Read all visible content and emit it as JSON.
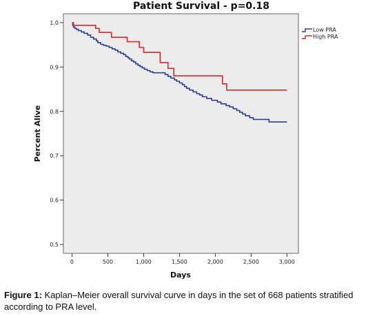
{
  "chart_data": {
    "type": "line",
    "title": "Patient Survival - p=0.18",
    "xlabel": "Days",
    "ylabel": "Percent Alive",
    "xlim": [
      -120,
      3160
    ],
    "ylim": [
      0.48,
      1.02
    ],
    "xticks": [
      0,
      500,
      1000,
      1500,
      2000,
      2500,
      3000
    ],
    "xtick_labels": [
      "0",
      "500",
      "1,000",
      "1,500",
      "2,000",
      "2,500",
      "3,000"
    ],
    "yticks": [
      0.5,
      0.6,
      0.7,
      0.8,
      0.9,
      1.0
    ],
    "ytick_labels": [
      "0.5",
      "0.6",
      "0.7",
      "0.8",
      "0.9",
      "1.0"
    ],
    "grid": false,
    "legend": "top-right",
    "series": [
      {
        "name": "Low PRA",
        "color": "#2b3d98",
        "x": [
          0,
          10,
          20,
          40,
          60,
          90,
          130,
          170,
          220,
          260,
          300,
          340,
          360,
          400,
          440,
          480,
          520,
          560,
          600,
          640,
          680,
          720,
          750,
          780,
          800,
          830,
          860,
          890,
          920,
          950,
          980,
          1010,
          1050,
          1090,
          1130,
          1300,
          1340,
          1380,
          1430,
          1460,
          1500,
          1540,
          1570,
          1600,
          1640,
          1690,
          1740,
          1780,
          1820,
          1880,
          1950,
          2030,
          2080,
          2150,
          2200,
          2250,
          2300,
          2340,
          2380,
          2420,
          2480,
          2530,
          2750,
          3000
        ],
        "y": [
          1.0,
          0.994,
          0.99,
          0.987,
          0.985,
          0.982,
          0.979,
          0.976,
          0.972,
          0.967,
          0.963,
          0.959,
          0.955,
          0.951,
          0.949,
          0.947,
          0.944,
          0.941,
          0.938,
          0.934,
          0.931,
          0.928,
          0.924,
          0.921,
          0.918,
          0.914,
          0.911,
          0.907,
          0.904,
          0.901,
          0.898,
          0.895,
          0.892,
          0.889,
          0.887,
          0.883,
          0.879,
          0.875,
          0.871,
          0.868,
          0.864,
          0.86,
          0.856,
          0.852,
          0.848,
          0.844,
          0.84,
          0.837,
          0.833,
          0.829,
          0.825,
          0.821,
          0.817,
          0.813,
          0.81,
          0.806,
          0.802,
          0.798,
          0.794,
          0.79,
          0.786,
          0.782,
          0.776,
          0.776
        ]
      },
      {
        "name": "High PRA",
        "color": "#d82a2a",
        "x": [
          0,
          20,
          330,
          380,
          550,
          770,
          940,
          1000,
          1230,
          1340,
          1420,
          1720,
          2100,
          2160,
          2380,
          3000
        ],
        "y": [
          1.0,
          0.994,
          0.987,
          0.978,
          0.967,
          0.957,
          0.944,
          0.933,
          0.91,
          0.897,
          0.88,
          0.88,
          0.862,
          0.848,
          0.848,
          0.848
        ]
      }
    ]
  },
  "caption": {
    "label": "Figure 1:",
    "text": " Kaplan–Meier overall survival curve in days in the set of 668 patients stratified according to PRA level."
  }
}
